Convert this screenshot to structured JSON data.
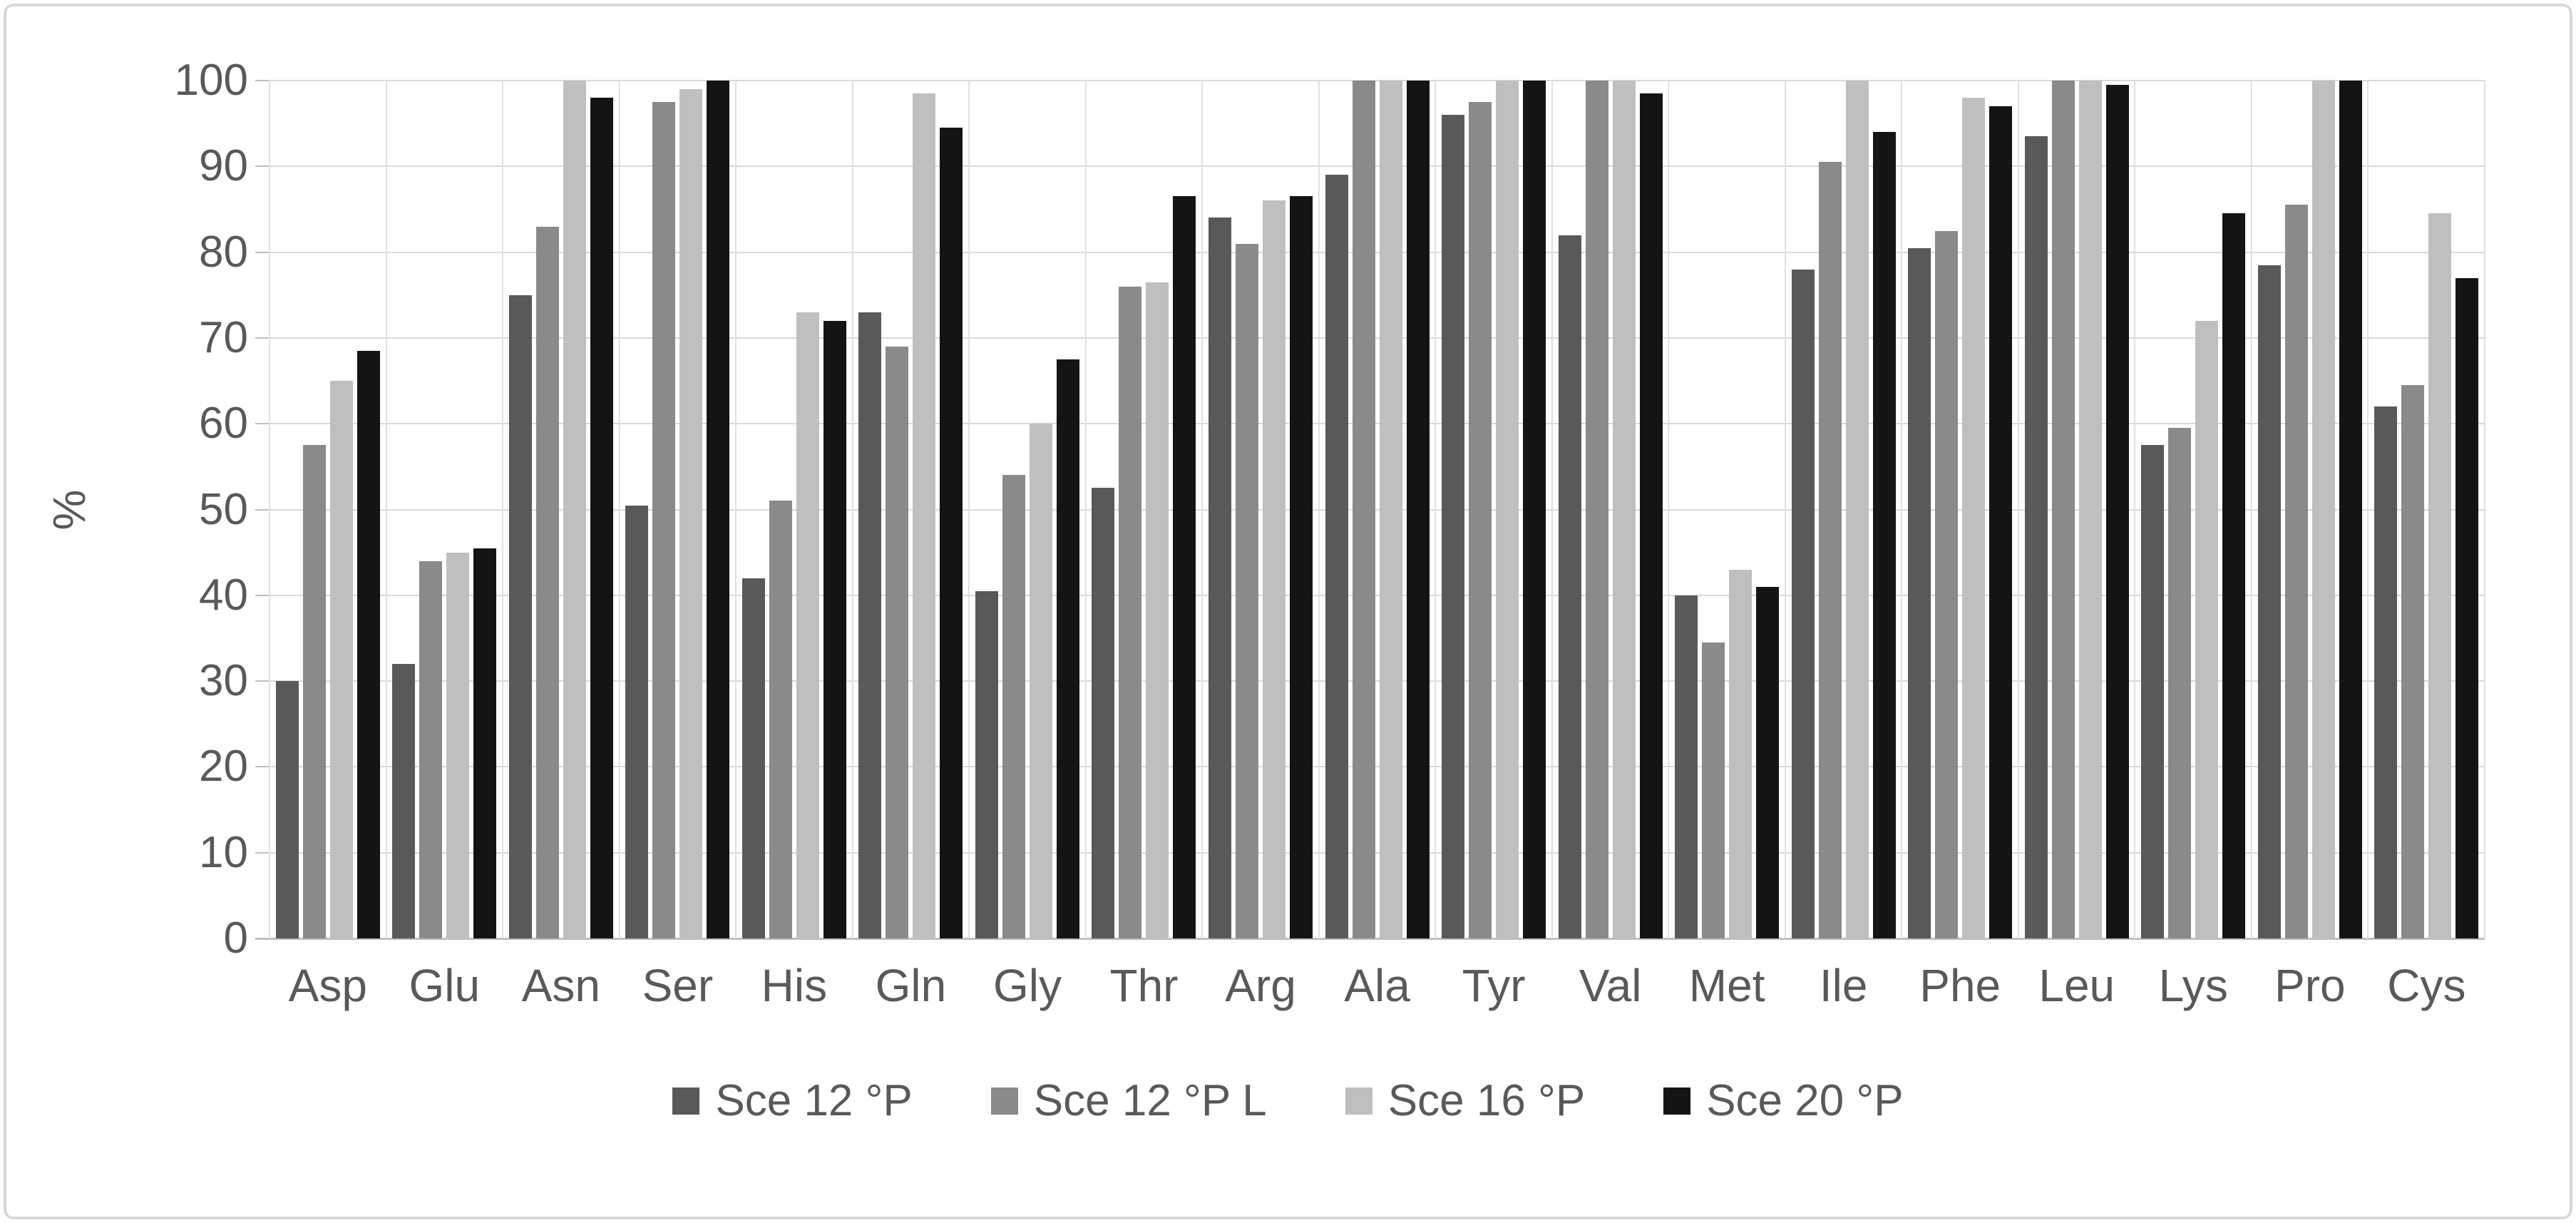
{
  "chart_data": {
    "type": "bar",
    "title": "",
    "xlabel": "",
    "ylabel": "%",
    "ylim": [
      0,
      100
    ],
    "ytick_step": 10,
    "y_ticks": [
      "0",
      "10",
      "20",
      "30",
      "40",
      "50",
      "60",
      "70",
      "80",
      "90",
      "100"
    ],
    "grid": {
      "horizontal": true,
      "vertical": true
    },
    "legend_position": "bottom",
    "categories": [
      "Asp",
      "Glu",
      "Asn",
      "Ser",
      "His",
      "Gln",
      "Gly",
      "Thr",
      "Arg",
      "Ala",
      "Tyr",
      "Val",
      "Met",
      "Ile",
      "Phe",
      "Leu",
      "Lys",
      "Pro",
      "Cys"
    ],
    "series": [
      {
        "name": "Sce 12 °P",
        "color": "#595959",
        "values": [
          30,
          32,
          75,
          50.5,
          42,
          73,
          40.5,
          52.5,
          84,
          89,
          96,
          82,
          40,
          78,
          80.5,
          93.5,
          57.5,
          78.5,
          62
        ]
      },
      {
        "name": "Sce 12 °P L",
        "color": "#8a8a8a",
        "values": [
          57.5,
          44,
          83,
          97.5,
          51,
          69,
          54,
          76,
          81,
          100,
          97.5,
          100,
          34.5,
          90.5,
          82.5,
          100,
          59.5,
          85.5,
          64.5
        ]
      },
      {
        "name": "Sce 16 °P",
        "color": "#bfbfbf",
        "values": [
          65,
          45,
          100,
          99,
          73,
          98.5,
          60,
          76.5,
          86,
          100,
          100,
          100,
          43,
          100,
          98,
          100,
          72,
          100,
          84.5
        ]
      },
      {
        "name": "Sce 20 °P",
        "color": "#141414",
        "values": [
          68.5,
          45.5,
          98,
          100,
          72,
          94.5,
          67.5,
          86.5,
          86.5,
          100,
          100,
          98.5,
          41,
          94,
          97,
          99.5,
          84.5,
          100,
          77
        ]
      }
    ],
    "colors": {
      "gridline": "#d9d9d9",
      "axis_line": "#bfbfbf",
      "label_text": "#595959",
      "background": "#ffffff"
    }
  }
}
